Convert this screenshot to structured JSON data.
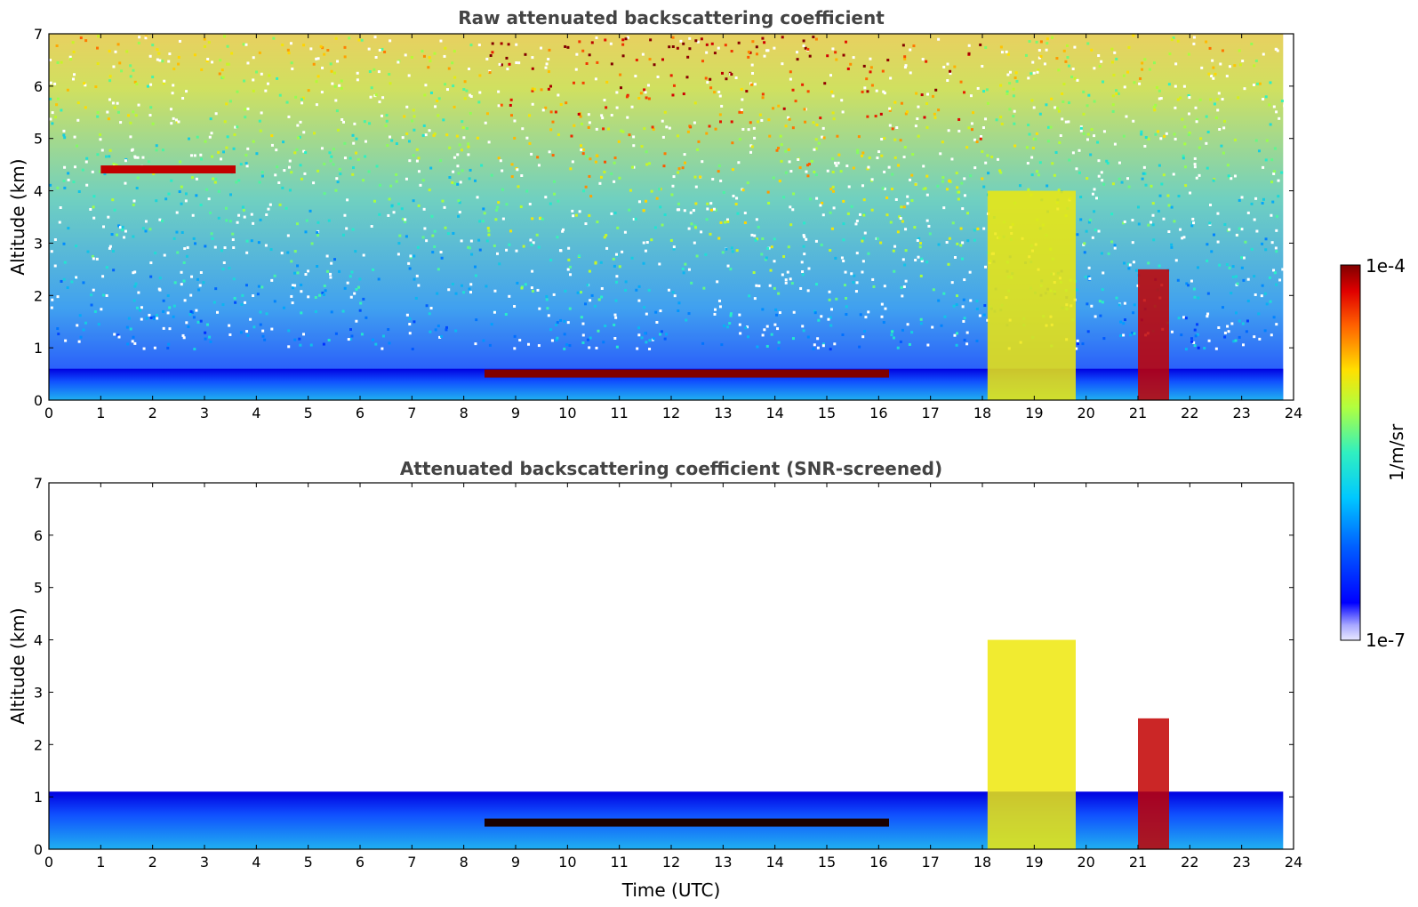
{
  "chart_data": [
    {
      "type": "heatmap",
      "title": "Raw attenuated backscattering coefficient",
      "xlabel": "",
      "ylabel": "Altitude (km)",
      "xlim": [
        0,
        24
      ],
      "ylim": [
        0,
        7
      ],
      "xticks": [
        "0",
        "1",
        "2",
        "3",
        "4",
        "5",
        "6",
        "7",
        "8",
        "9",
        "10",
        "11",
        "12",
        "13",
        "14",
        "15",
        "16",
        "17",
        "18",
        "19",
        "20",
        "21",
        "22",
        "23",
        "24"
      ],
      "yticks": [
        "0",
        "1",
        "2",
        "3",
        "4",
        "5",
        "6",
        "7"
      ],
      "features": [
        {
          "name": "boundary-layer",
          "t_start": 0,
          "t_end": 23.8,
          "alt_top": 0.6,
          "level": 0.35
        },
        {
          "name": "stratocumulus-cloud-top",
          "t_start": 8.4,
          "t_end": 16.2,
          "alt": 0.5,
          "level": 1.0
        },
        {
          "name": "mid-level-clouds",
          "t_start": 1.0,
          "t_end": 3.6,
          "alt": 4.4,
          "level": 0.95
        },
        {
          "name": "convective-columns",
          "t_start": 18.1,
          "t_end": 19.8,
          "alt_top": 4.0,
          "level": 0.7
        },
        {
          "name": "dense-cloud-column",
          "t_start": 21.0,
          "t_end": 21.6,
          "alt_top": 2.5,
          "level": 0.95
        }
      ]
    },
    {
      "type": "heatmap",
      "title": "Attenuated backscattering coefficient (SNR-screened)",
      "xlabel": "Time (UTC)",
      "ylabel": "Altitude (km)",
      "xlim": [
        0,
        24
      ],
      "ylim": [
        0,
        7
      ],
      "xticks": [
        "0",
        "1",
        "2",
        "3",
        "4",
        "5",
        "6",
        "7",
        "8",
        "9",
        "10",
        "11",
        "12",
        "13",
        "14",
        "15",
        "16",
        "17",
        "18",
        "19",
        "20",
        "21",
        "22",
        "23",
        "24"
      ],
      "yticks": [
        "0",
        "1",
        "2",
        "3",
        "4",
        "5",
        "6",
        "7"
      ],
      "features": [
        {
          "name": "boundary-layer",
          "t_start": 0,
          "t_end": 23.8,
          "alt_top": 1.1,
          "level": 0.3
        },
        {
          "name": "stratocumulus-cloud-top",
          "t_start": 8.4,
          "t_end": 16.2,
          "alt": 0.5,
          "level": 1.0
        },
        {
          "name": "convective-columns",
          "t_start": 18.1,
          "t_end": 19.8,
          "alt_top": 4.0,
          "level": 0.7
        },
        {
          "name": "dense-cloud-column",
          "t_start": 21.0,
          "t_end": 21.6,
          "alt_top": 2.5,
          "level": 0.95
        }
      ]
    }
  ],
  "colorbar": {
    "max_label": "1e-4",
    "min_label": "1e-7",
    "unit_label": "1/m/sr",
    "colormap": "jet"
  }
}
